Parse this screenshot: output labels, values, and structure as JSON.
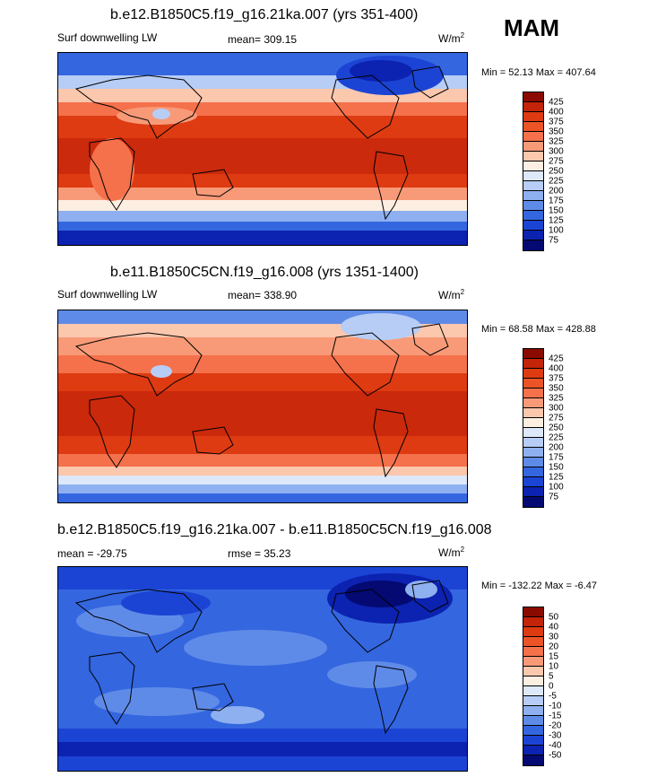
{
  "season": "MAM",
  "units": {
    "base": "W/m",
    "sup": "2"
  },
  "panels": [
    {
      "title": "b.e12.B1850C5.f19_g16.21ka.007 (yrs 351-400)",
      "left_label": "Surf downwelling LW",
      "center_label": "mean= 309.15",
      "minmax": "Min =  52.13 Max = 407.64",
      "levels": [
        "425",
        "400",
        "375",
        "350",
        "325",
        "300",
        "275",
        "250",
        "225",
        "200",
        "175",
        "150",
        "125",
        "100",
        "75"
      ]
    },
    {
      "title": "b.e11.B1850C5CN.f19_g16.008 (yrs 1351-1400)",
      "left_label": "Surf downwelling LW",
      "center_label": "mean= 338.90",
      "minmax": "Min =  68.58 Max = 428.88",
      "levels": [
        "425",
        "400",
        "375",
        "350",
        "325",
        "300",
        "275",
        "250",
        "225",
        "200",
        "175",
        "150",
        "125",
        "100",
        "75"
      ]
    },
    {
      "title": "b.e12.B1850C5.f19_g16.21ka.007 - b.e11.B1850C5CN.f19_g16.008",
      "left_label": "mean = -29.75",
      "center_label": "rmse =  35.23",
      "minmax": "Min = -132.22 Max =  -6.47",
      "levels": [
        "50",
        "40",
        "30",
        "20",
        "15",
        "10",
        "5",
        "0",
        "-5",
        "-10",
        "-15",
        "-20",
        "-30",
        "-40",
        "-50"
      ]
    }
  ],
  "colors": {
    "abs_scale": [
      "#8b0a00",
      "#c3240a",
      "#de3b12",
      "#ec5427",
      "#f4714b",
      "#f89a78",
      "#fbc7ad",
      "#fdeee2",
      "#dde8fb",
      "#b7cdf6",
      "#8eb0f0",
      "#5f8be8",
      "#3466e0",
      "#1c44d4",
      "#0c22b0",
      "#040a72"
    ],
    "diff_scale": [
      "#8b0a00",
      "#c3240a",
      "#de3b12",
      "#ec5427",
      "#f4714b",
      "#f89a78",
      "#fbc7ad",
      "#fdeee2",
      "#dde8fb",
      "#b7cdf6",
      "#8eb0f0",
      "#5f8be8",
      "#3466e0",
      "#1c44d4",
      "#0c22b0",
      "#040a72"
    ]
  }
}
